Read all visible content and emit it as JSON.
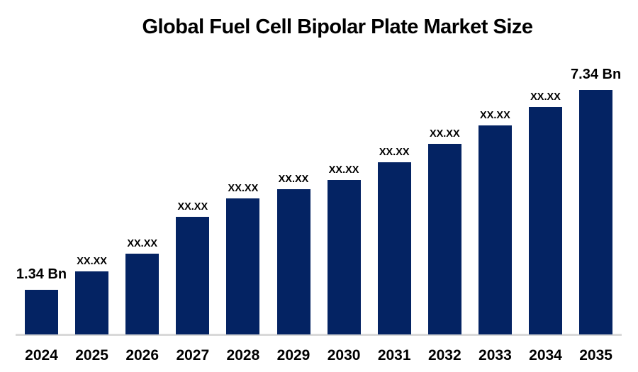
{
  "chart_data": {
    "type": "bar",
    "title": "Global Fuel Cell Bipolar Plate Market Size",
    "categories": [
      "2024",
      "2025",
      "2026",
      "2027",
      "2028",
      "2029",
      "2030",
      "2031",
      "2032",
      "2033",
      "2034",
      "2035"
    ],
    "values": [
      1.34,
      1.89,
      2.43,
      3.53,
      4.09,
      4.36,
      4.64,
      5.17,
      5.72,
      6.28,
      6.83,
      7.34
    ],
    "bar_labels": [
      "1.34 Bn",
      "XX.XX",
      "XX.XX",
      "XX.XX",
      "XX.XX",
      "XX.XX",
      "XX.XX",
      "XX.XX",
      "XX.XX",
      "XX.XX",
      "XX.XX",
      "7.34 Bn"
    ],
    "first_bar_label": "1.34 Bn",
    "last_bar_label": "7.34 Bn",
    "masked_label": "XX.XX",
    "xlabel": "",
    "ylabel": "",
    "ylim": [
      0,
      8
    ],
    "y_axis_visible": false,
    "grid": false,
    "legend": false,
    "bar_color": "#042363",
    "axis_line_color": "#d9d9d9",
    "text_color": "#000000",
    "background_color": "#ffffff"
  }
}
